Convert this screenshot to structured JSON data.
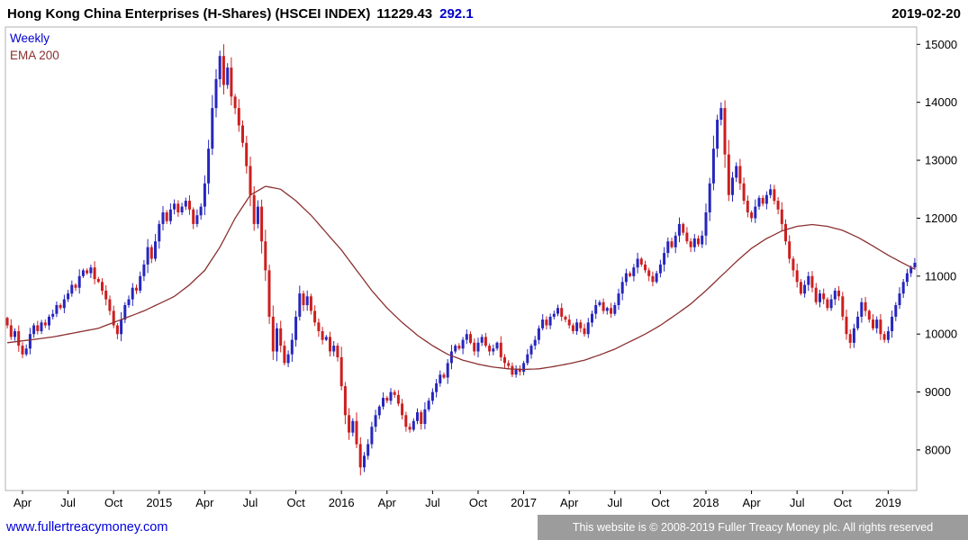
{
  "header": {
    "title": "Hong Kong China Enterprises (H-Shares) (HSCEI INDEX)",
    "last": "11229.43",
    "change": "292.1",
    "date": "2019-02-20"
  },
  "legend": {
    "timeframe": "Weekly",
    "ma_label": "EMA 200"
  },
  "footer": {
    "link": "www.fullertreacymoney.com",
    "copyright": "This website is © 2008-2019 Fuller Treacy Money plc. All rights reserved"
  },
  "colors": {
    "up": "#2626bd",
    "down": "#cc1f1f",
    "ma": "#8b3030",
    "axis": "#000000",
    "border": "#b0b0b0",
    "accent_blue": "#0000cc"
  },
  "chart_data": {
    "type": "candlestick",
    "timeframe": "weekly",
    "title": "Hong Kong China Enterprises (H-Shares) (HSCEI INDEX)",
    "last_close": 11229.43,
    "change": 292.1,
    "xlabel": "",
    "ylabel": "",
    "grid": false,
    "legend_position": "top-left-inside",
    "ylim": [
      7300,
      15300
    ],
    "y_ticks": [
      8000,
      9000,
      10000,
      11000,
      12000,
      13000,
      14000,
      15000
    ],
    "x_ticks": [
      {
        "label": "Apr",
        "idx": 4
      },
      {
        "label": "Jul",
        "idx": 16
      },
      {
        "label": "Oct",
        "idx": 28
      },
      {
        "label": "2015",
        "idx": 40
      },
      {
        "label": "Apr",
        "idx": 52
      },
      {
        "label": "Jul",
        "idx": 64
      },
      {
        "label": "Oct",
        "idx": 76
      },
      {
        "label": "2016",
        "idx": 88
      },
      {
        "label": "Apr",
        "idx": 100
      },
      {
        "label": "Jul",
        "idx": 112
      },
      {
        "label": "Oct",
        "idx": 124
      },
      {
        "label": "2017",
        "idx": 136
      },
      {
        "label": "Apr",
        "idx": 148
      },
      {
        "label": "Jul",
        "idx": 160
      },
      {
        "label": "Oct",
        "idx": 172
      },
      {
        "label": "2018",
        "idx": 184
      },
      {
        "label": "Apr",
        "idx": 196
      },
      {
        "label": "Jul",
        "idx": 208
      },
      {
        "label": "Oct",
        "idx": 220
      },
      {
        "label": "2019",
        "idx": 232
      }
    ],
    "closes": [
      10150,
      9950,
      10050,
      9800,
      9650,
      9750,
      10000,
      10150,
      10050,
      10200,
      10150,
      10300,
      10350,
      10500,
      10450,
      10600,
      10700,
      10850,
      10800,
      11000,
      11100,
      11050,
      11150,
      10950,
      10900,
      10750,
      10600,
      10400,
      10150,
      10000,
      10250,
      10500,
      10600,
      10800,
      10750,
      11000,
      11200,
      11500,
      11300,
      11600,
      11900,
      12100,
      11950,
      12150,
      12250,
      12100,
      12200,
      12300,
      12150,
      11900,
      12050,
      12200,
      12600,
      13200,
      13900,
      14400,
      14800,
      14300,
      14600,
      14100,
      13900,
      13600,
      13300,
      12900,
      12400,
      11900,
      12200,
      11600,
      11100,
      10300,
      9700,
      10100,
      9800,
      9500,
      9650,
      9900,
      10300,
      10700,
      10500,
      10650,
      10400,
      10200,
      10050,
      9900,
      9950,
      9700,
      9800,
      9600,
      9100,
      8600,
      8300,
      8500,
      8100,
      7700,
      7900,
      8100,
      8400,
      8600,
      8750,
      8900,
      8850,
      9000,
      8950,
      8800,
      8600,
      8400,
      8350,
      8500,
      8650,
      8450,
      8700,
      8850,
      9000,
      9150,
      9300,
      9250,
      9500,
      9700,
      9800,
      9750,
      9900,
      10000,
      9850,
      9700,
      9850,
      9950,
      9800,
      9700,
      9750,
      9850,
      9600,
      9500,
      9450,
      9300,
      9400,
      9350,
      9500,
      9650,
      9800,
      9900,
      10100,
      10250,
      10150,
      10300,
      10350,
      10450,
      10300,
      10250,
      10150,
      10050,
      10200,
      10100,
      10000,
      10200,
      10350,
      10500,
      10550,
      10400,
      10450,
      10350,
      10500,
      10700,
      10900,
      11050,
      11000,
      11150,
      11300,
      11200,
      11100,
      11000,
      10900,
      11050,
      11200,
      11400,
      11600,
      11500,
      11700,
      11900,
      11750,
      11600,
      11500,
      11650,
      11550,
      11700,
      12100,
      12600,
      13200,
      13700,
      13900,
      13100,
      12400,
      12700,
      12900,
      12600,
      12300,
      12100,
      12000,
      12200,
      12350,
      12250,
      12400,
      12500,
      12300,
      12150,
      11900,
      11600,
      11300,
      11100,
      10900,
      10700,
      10850,
      11000,
      10800,
      10550,
      10700,
      10600,
      10450,
      10600,
      10750,
      10650,
      10300,
      10000,
      9850,
      10100,
      10300,
      10550,
      10400,
      10250,
      10100,
      10250,
      10000,
      9900,
      10050,
      10300,
      10500,
      10700,
      10900,
      11050,
      11150,
      11229.43
    ],
    "ema200_anchors": [
      [
        0,
        9850
      ],
      [
        12,
        9950
      ],
      [
        24,
        10100
      ],
      [
        36,
        10400
      ],
      [
        44,
        10650
      ],
      [
        48,
        10850
      ],
      [
        52,
        11100
      ],
      [
        56,
        11500
      ],
      [
        60,
        12000
      ],
      [
        64,
        12400
      ],
      [
        68,
        12550
      ],
      [
        72,
        12500
      ],
      [
        76,
        12300
      ],
      [
        80,
        12050
      ],
      [
        84,
        11750
      ],
      [
        88,
        11450
      ],
      [
        92,
        11100
      ],
      [
        96,
        10750
      ],
      [
        100,
        10450
      ],
      [
        104,
        10200
      ],
      [
        108,
        9980
      ],
      [
        112,
        9800
      ],
      [
        116,
        9650
      ],
      [
        120,
        9550
      ],
      [
        124,
        9480
      ],
      [
        128,
        9430
      ],
      [
        132,
        9400
      ],
      [
        136,
        9390
      ],
      [
        140,
        9400
      ],
      [
        144,
        9440
      ],
      [
        148,
        9490
      ],
      [
        152,
        9550
      ],
      [
        156,
        9640
      ],
      [
        160,
        9740
      ],
      [
        164,
        9870
      ],
      [
        168,
        10000
      ],
      [
        172,
        10150
      ],
      [
        176,
        10330
      ],
      [
        180,
        10520
      ],
      [
        184,
        10750
      ],
      [
        188,
        11000
      ],
      [
        192,
        11250
      ],
      [
        196,
        11480
      ],
      [
        200,
        11650
      ],
      [
        204,
        11780
      ],
      [
        208,
        11860
      ],
      [
        212,
        11890
      ],
      [
        216,
        11860
      ],
      [
        220,
        11790
      ],
      [
        224,
        11670
      ],
      [
        228,
        11520
      ],
      [
        232,
        11360
      ],
      [
        236,
        11220
      ],
      [
        239,
        11120
      ]
    ]
  }
}
